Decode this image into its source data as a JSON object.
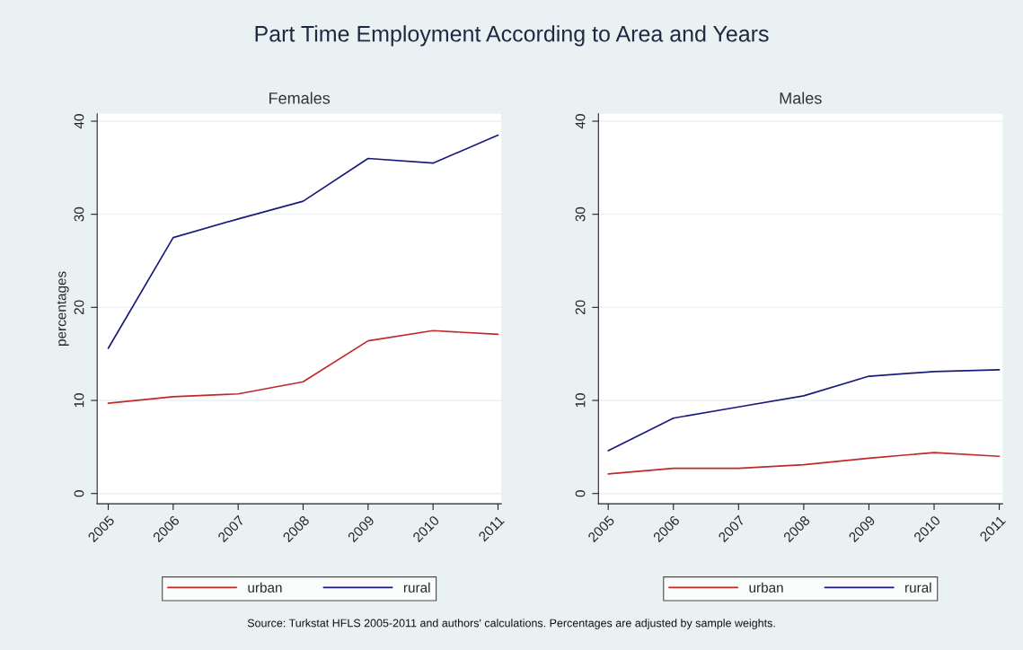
{
  "chart_data": [
    {
      "type": "line",
      "title": "Part Time Employment According to Area and Years",
      "subtitle": "Females",
      "ylabel": "percentages",
      "x": [
        2005,
        2006,
        2007,
        2008,
        2009,
        2010,
        2011
      ],
      "series": [
        {
          "name": "urban",
          "color": "#c0282a",
          "values": [
            9.7,
            10.4,
            10.7,
            12.0,
            16.4,
            17.5,
            17.1
          ]
        },
        {
          "name": "rural",
          "color": "#1a1a7a",
          "values": [
            15.6,
            27.5,
            29.5,
            31.4,
            36.0,
            35.5,
            38.5
          ]
        }
      ],
      "xlim": [
        2004.83,
        2011.05
      ],
      "xticks": [
        2005,
        2006,
        2007,
        2008,
        2009,
        2010,
        2011
      ],
      "ylim": [
        -1.1,
        40.8
      ],
      "yticks": [
        0,
        10,
        20,
        30,
        40
      ],
      "grid": "y",
      "legend": "bottom",
      "annotations": [
        "Source: Turkstat HFLS 2005-2011 and authors' calculations. Percentages are adjusted by sample weights."
      ]
    },
    {
      "type": "line",
      "subtitle": "Males",
      "x": [
        2005,
        2006,
        2007,
        2008,
        2009,
        2010,
        2011
      ],
      "series": [
        {
          "name": "urban",
          "color": "#c0282a",
          "values": [
            2.1,
            2.7,
            2.7,
            3.1,
            3.8,
            4.4,
            4.0
          ]
        },
        {
          "name": "rural",
          "color": "#1a1a7a",
          "values": [
            4.6,
            8.1,
            9.3,
            10.5,
            12.6,
            13.1,
            13.3
          ]
        }
      ],
      "xlim": [
        2004.85,
        2011.05
      ],
      "xticks": [
        2005,
        2006,
        2007,
        2008,
        2009,
        2010,
        2011
      ],
      "ylim": [
        -1.1,
        40.8
      ],
      "yticks": [
        0,
        10,
        20,
        30,
        40
      ],
      "grid": "y",
      "legend": "bottom"
    }
  ]
}
